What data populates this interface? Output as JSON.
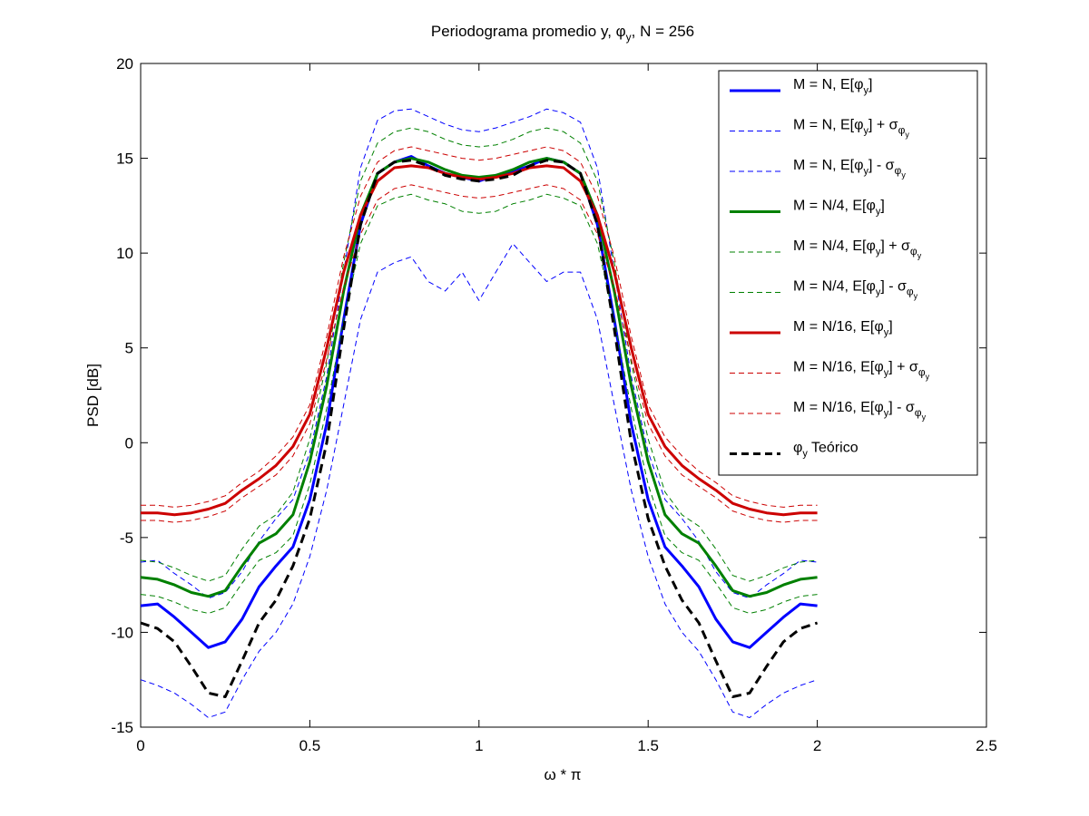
{
  "chart_data": {
    "type": "line",
    "title": "Periodograma promedio y, φ_y, N = 256",
    "title_parts": [
      "Periodograma promedio y, φ",
      "y",
      ", N = 256"
    ],
    "xlabel": "ω * π",
    "ylabel": "PSD [dB]",
    "xlim": [
      0,
      2.5
    ],
    "ylim": [
      -15,
      20
    ],
    "xticks": [
      0,
      0.5,
      1,
      1.5,
      2,
      2.5
    ],
    "xtick_labels": [
      "0",
      "0.5",
      "1",
      "1.5",
      "2",
      "2.5"
    ],
    "yticks": [
      -15,
      -10,
      -5,
      0,
      5,
      10,
      15,
      20
    ],
    "ytick_labels": [
      "-15",
      "-10",
      "-5",
      "0",
      "5",
      "10",
      "15",
      "20"
    ],
    "grid": false,
    "legend_position": "top-right",
    "x": [
      0,
      0.05,
      0.1,
      0.15,
      0.2,
      0.25,
      0.3,
      0.35,
      0.4,
      0.45,
      0.5,
      0.55,
      0.6,
      0.65,
      0.7,
      0.75,
      0.8,
      0.85,
      0.9,
      0.95,
      1.0,
      1.05,
      1.1,
      1.15,
      1.2,
      1.25,
      1.3,
      1.35,
      1.4,
      1.45,
      1.5,
      1.55,
      1.6,
      1.65,
      1.7,
      1.75,
      1.8,
      1.85,
      1.9,
      1.95,
      2.0
    ],
    "series": [
      {
        "name": "M = N, E[φ_y]",
        "name_parts": [
          "M = N, E[φ",
          "y",
          "]",
          "",
          ""
        ],
        "color": "#0000ff",
        "style": "solid",
        "width": 3,
        "values": [
          -8.6,
          -8.5,
          -9.2,
          -10.0,
          -10.8,
          -10.5,
          -9.3,
          -7.6,
          -6.5,
          -5.5,
          -3.0,
          1.0,
          6.5,
          11.5,
          14.2,
          14.8,
          15.1,
          14.6,
          14.2,
          14.0,
          13.8,
          14.1,
          14.3,
          14.6,
          15.0,
          14.8,
          14.2,
          11.5,
          6.5,
          1.0,
          -3.0,
          -5.5,
          -6.5,
          -7.6,
          -9.3,
          -10.5,
          -10.8,
          -10.0,
          -9.2,
          -8.5,
          -8.6
        ]
      },
      {
        "name": "M = N, E[φ_y] + σ_φ_y",
        "name_parts": [
          "M = N, E[φ",
          "y",
          "] + σ",
          "φ",
          "y"
        ],
        "color": "#0000ff",
        "style": "dashed",
        "width": 1,
        "values": [
          -6.3,
          -6.2,
          -6.9,
          -7.5,
          -8.2,
          -7.9,
          -6.8,
          -5.2,
          -4.0,
          -3.0,
          -0.5,
          3.5,
          9.0,
          14.5,
          17.0,
          17.5,
          17.6,
          17.2,
          16.8,
          16.5,
          16.4,
          16.6,
          16.9,
          17.2,
          17.6,
          17.4,
          16.9,
          14.5,
          9.0,
          3.5,
          -0.5,
          -3.0,
          -4.0,
          -5.2,
          -6.8,
          -7.9,
          -8.2,
          -7.5,
          -6.9,
          -6.2,
          -6.3
        ]
      },
      {
        "name": "M = N, E[φ_y] - σ_φ_y",
        "name_parts": [
          "M = N, E[φ",
          "y",
          "] - σ",
          "φ",
          "y"
        ],
        "color": "#0000ff",
        "style": "dashed",
        "width": 1,
        "values": [
          -12.5,
          -12.8,
          -13.2,
          -13.8,
          -14.5,
          -14.2,
          -12.5,
          -11.0,
          -10.0,
          -8.5,
          -6.0,
          -2.5,
          2.0,
          6.5,
          9.0,
          9.5,
          9.8,
          8.5,
          8.0,
          9.0,
          7.5,
          9.0,
          10.5,
          9.5,
          8.5,
          9.0,
          9.0,
          6.5,
          2.0,
          -2.5,
          -6.0,
          -8.5,
          -10.0,
          -11.0,
          -12.5,
          -14.2,
          -14.5,
          -13.8,
          -13.2,
          -12.8,
          -12.5
        ]
      },
      {
        "name": "M = N/4, E[φ_y]",
        "name_parts": [
          "M = N/4, E[φ",
          "y",
          "]",
          "",
          ""
        ],
        "color": "#008000",
        "style": "solid",
        "width": 3,
        "values": [
          -7.1,
          -7.2,
          -7.5,
          -7.9,
          -8.1,
          -7.8,
          -6.5,
          -5.3,
          -4.8,
          -3.8,
          -1.0,
          3.0,
          8.0,
          12.0,
          14.2,
          14.8,
          15.0,
          14.8,
          14.4,
          14.1,
          14.0,
          14.1,
          14.4,
          14.8,
          15.0,
          14.8,
          14.2,
          12.0,
          8.0,
          3.0,
          -1.0,
          -3.8,
          -4.8,
          -5.3,
          -6.5,
          -7.8,
          -8.1,
          -7.9,
          -7.5,
          -7.2,
          -7.1
        ]
      },
      {
        "name": "M = N/4, E[φ_y] + σ_φ_y",
        "name_parts": [
          "M = N/4, E[φ",
          "y",
          "] + σ",
          "φ",
          "y"
        ],
        "color": "#008000",
        "style": "dashed",
        "width": 1,
        "values": [
          -6.2,
          -6.3,
          -6.6,
          -7.0,
          -7.3,
          -7.0,
          -5.6,
          -4.4,
          -3.8,
          -2.6,
          0.2,
          4.2,
          9.5,
          13.8,
          15.8,
          16.4,
          16.6,
          16.4,
          16.0,
          15.7,
          15.6,
          15.7,
          16.0,
          16.4,
          16.6,
          16.4,
          15.8,
          13.8,
          9.5,
          4.2,
          0.2,
          -2.6,
          -3.8,
          -4.4,
          -5.6,
          -7.0,
          -7.3,
          -7.0,
          -6.6,
          -6.3,
          -6.2
        ]
      },
      {
        "name": "M = N/4, E[φ_y] - σ_φ_y",
        "name_parts": [
          "M = N/4, E[φ",
          "y",
          "] - σ",
          "φ",
          "y"
        ],
        "color": "#008000",
        "style": "dashed",
        "width": 1,
        "values": [
          -8.0,
          -8.1,
          -8.4,
          -8.8,
          -9.0,
          -8.7,
          -7.4,
          -6.2,
          -5.8,
          -4.9,
          -2.2,
          1.8,
          6.5,
          10.5,
          12.5,
          12.9,
          13.1,
          12.8,
          12.6,
          12.2,
          12.1,
          12.2,
          12.6,
          12.8,
          13.1,
          12.9,
          12.5,
          10.5,
          6.5,
          1.8,
          -2.2,
          -4.9,
          -5.8,
          -6.2,
          -7.4,
          -8.7,
          -9.0,
          -8.8,
          -8.4,
          -8.1,
          -8.0
        ]
      },
      {
        "name": "M = N/16, E[φ_y]",
        "name_parts": [
          "M = N/16, E[φ",
          "y",
          "]",
          "",
          ""
        ],
        "color": "#cc0000",
        "style": "solid",
        "width": 3,
        "values": [
          -3.7,
          -3.7,
          -3.8,
          -3.7,
          -3.5,
          -3.2,
          -2.5,
          -1.9,
          -1.2,
          -0.2,
          1.5,
          5.0,
          9.0,
          12.0,
          13.8,
          14.5,
          14.6,
          14.5,
          14.2,
          14.0,
          13.9,
          14.0,
          14.2,
          14.5,
          14.6,
          14.5,
          13.8,
          12.0,
          9.0,
          5.0,
          1.5,
          -0.2,
          -1.2,
          -1.9,
          -2.5,
          -3.2,
          -3.5,
          -3.7,
          -3.8,
          -3.7,
          -3.7
        ]
      },
      {
        "name": "M = N/16, E[φ_y] + σ_φ_y",
        "name_parts": [
          "M = N/16, E[φ",
          "y",
          "] + σ",
          "φ",
          "y"
        ],
        "color": "#cc0000",
        "style": "dashed",
        "width": 1,
        "values": [
          -3.3,
          -3.3,
          -3.4,
          -3.3,
          -3.1,
          -2.8,
          -2.1,
          -1.5,
          -0.7,
          0.3,
          2.0,
          5.6,
          9.8,
          13.0,
          14.8,
          15.4,
          15.6,
          15.4,
          15.2,
          15.0,
          14.9,
          15.0,
          15.2,
          15.4,
          15.6,
          15.4,
          14.8,
          13.0,
          9.8,
          5.6,
          2.0,
          0.3,
          -0.7,
          -1.5,
          -2.1,
          -2.8,
          -3.1,
          -3.3,
          -3.4,
          -3.3,
          -3.3
        ]
      },
      {
        "name": "M = N/16, E[φ_y] - σ_φ_y",
        "name_parts": [
          "M = N/16, E[φ",
          "y",
          "] - σ",
          "φ",
          "y"
        ],
        "color": "#cc0000",
        "style": "dashed",
        "width": 1,
        "values": [
          -4.1,
          -4.1,
          -4.2,
          -4.1,
          -3.9,
          -3.6,
          -2.9,
          -2.3,
          -1.7,
          -0.7,
          1.0,
          4.4,
          8.2,
          11.0,
          12.8,
          13.4,
          13.6,
          13.4,
          13.2,
          13.0,
          12.9,
          13.0,
          13.2,
          13.4,
          13.6,
          13.4,
          12.8,
          11.0,
          8.2,
          4.4,
          1.0,
          -0.7,
          -1.7,
          -2.3,
          -2.9,
          -3.6,
          -3.9,
          -4.1,
          -4.2,
          -4.1,
          -4.1
        ]
      },
      {
        "name": "φ_y Teórico",
        "name_parts": [
          "φ",
          "y",
          " Teórico",
          "",
          ""
        ],
        "color": "#000000",
        "style": "dashed",
        "width": 3,
        "values": [
          -9.5,
          -9.8,
          -10.5,
          -11.8,
          -13.2,
          -13.4,
          -11.5,
          -9.5,
          -8.3,
          -6.5,
          -4.0,
          0.0,
          6.0,
          11.5,
          14.2,
          14.8,
          14.9,
          14.6,
          14.1,
          13.9,
          13.8,
          13.9,
          14.1,
          14.6,
          14.9,
          14.8,
          14.2,
          11.5,
          6.0,
          0.0,
          -4.0,
          -6.5,
          -8.3,
          -9.5,
          -11.5,
          -13.4,
          -13.2,
          -11.8,
          -10.5,
          -9.8,
          -9.5
        ]
      }
    ]
  }
}
